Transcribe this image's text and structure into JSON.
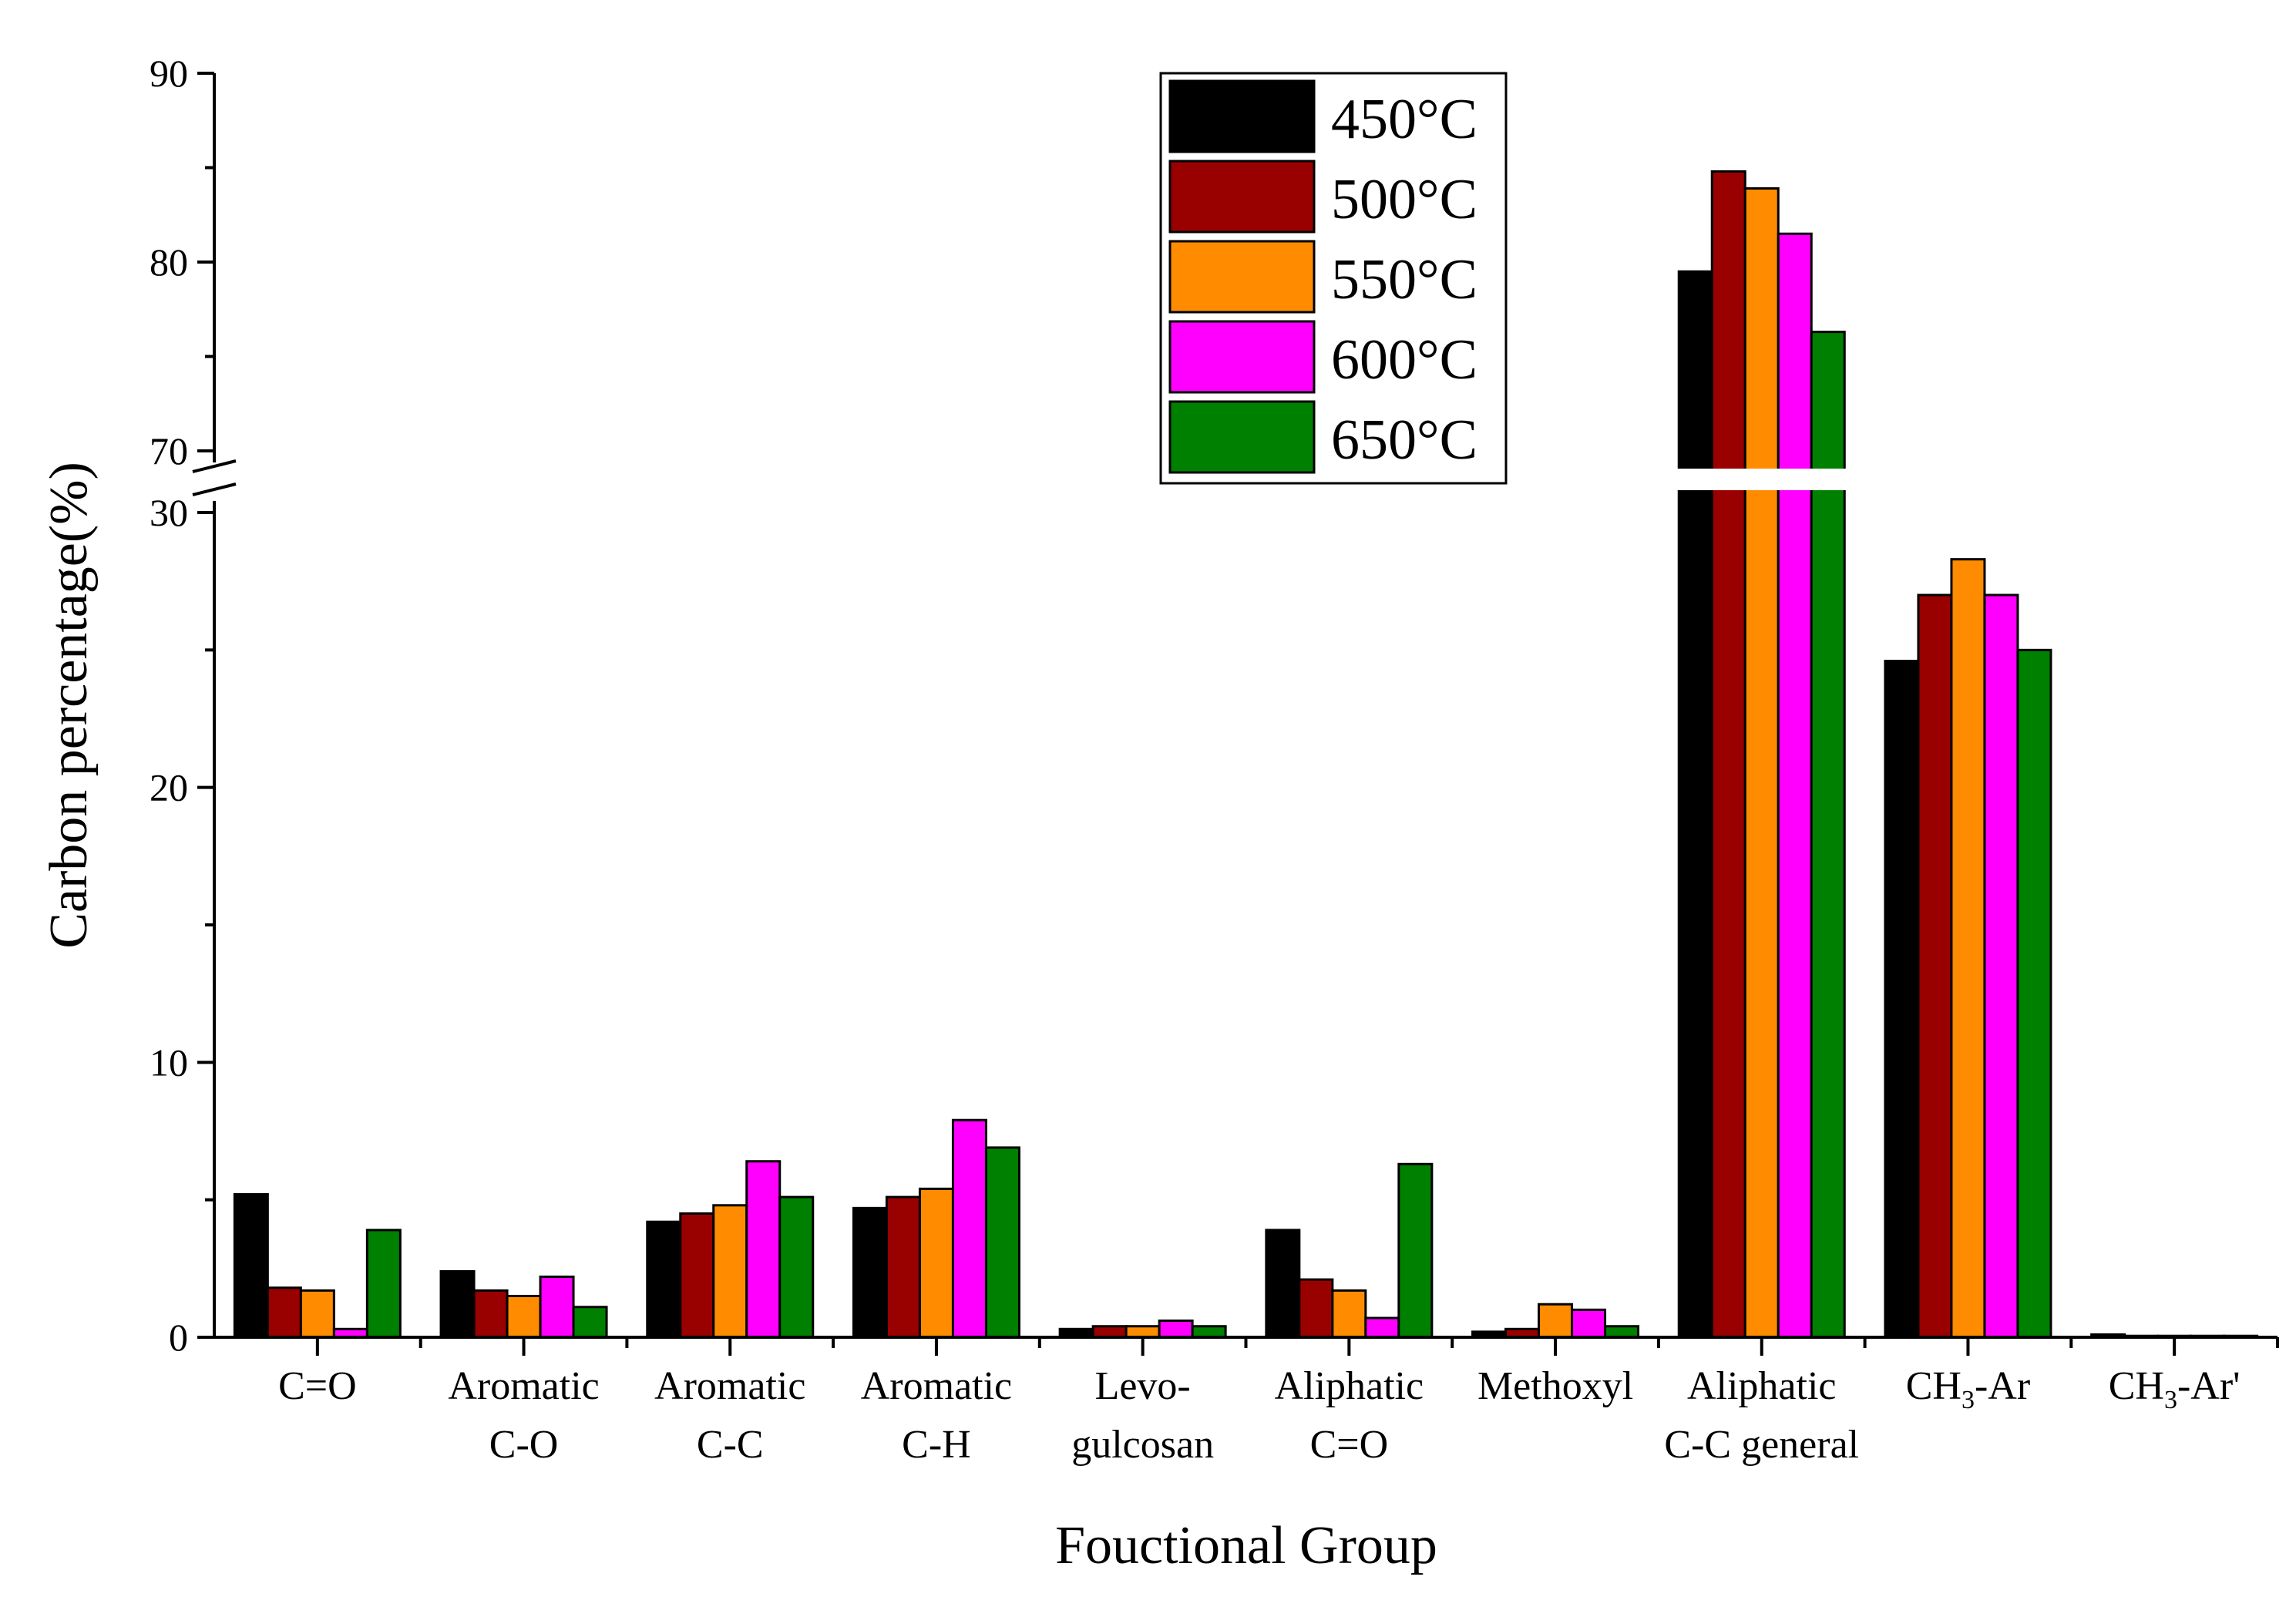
{
  "chart_data": {
    "type": "bar",
    "title": "",
    "xlabel": "Fouctional Group",
    "ylabel": "Carbon percentage(%)",
    "ylim": [
      0,
      90
    ],
    "axis_break": [
      30,
      70
    ],
    "yticks_lower": [
      "0",
      "10",
      "20",
      "30"
    ],
    "yticks_upper": [
      "70",
      "80",
      "90"
    ],
    "categories": [
      [
        "C=O"
      ],
      [
        "Aromatic",
        "C-O"
      ],
      [
        "Aromatic",
        "C-C"
      ],
      [
        "Aromatic",
        "C-H"
      ],
      [
        "Levo-",
        "gulcosan"
      ],
      [
        "Aliphatic",
        "C=O"
      ],
      [
        "Methoxyl"
      ],
      [
        "Aliphatic",
        "C-C general"
      ],
      [
        "CH3-Ar"
      ],
      [
        "CH3-Ar'"
      ]
    ],
    "series": [
      {
        "name": "450°C",
        "color": "#000000",
        "values": [
          5.2,
          2.4,
          4.2,
          4.7,
          0.3,
          3.9,
          0.2,
          79.5,
          24.6,
          0.1
        ]
      },
      {
        "name": "500°C",
        "color": "#990000",
        "values": [
          1.8,
          1.7,
          4.5,
          5.1,
          0.4,
          2.1,
          0.3,
          84.8,
          27.0,
          0.05
        ]
      },
      {
        "name": "550°C",
        "color": "#FF8C00",
        "values": [
          1.7,
          1.5,
          4.8,
          5.4,
          0.4,
          1.7,
          1.2,
          83.9,
          28.3,
          0.05
        ]
      },
      {
        "name": "600°C",
        "color": "#FF00FF",
        "values": [
          0.3,
          2.2,
          6.4,
          7.9,
          0.6,
          0.7,
          1.0,
          81.5,
          27.0,
          0.05
        ]
      },
      {
        "name": "650°C",
        "color": "#008000",
        "values": [
          3.9,
          1.1,
          5.1,
          6.9,
          0.4,
          6.3,
          0.4,
          76.3,
          25.0,
          0.05
        ]
      }
    ],
    "legend_position": "top-center"
  }
}
